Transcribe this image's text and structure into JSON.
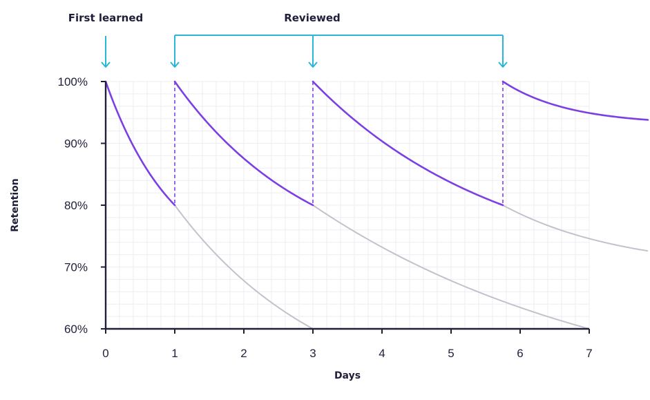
{
  "chart_data": {
    "type": "line",
    "xlabel": "Days",
    "ylabel": "Retention",
    "xlim": [
      0,
      7
    ],
    "ylim": [
      60,
      100
    ],
    "x_ticks": [
      0,
      1,
      2,
      3,
      4,
      5,
      6,
      7
    ],
    "y_ticks": [
      60,
      70,
      80,
      90,
      100
    ],
    "y_tick_labels": [
      "60%",
      "70%",
      "80%",
      "90%",
      "100%"
    ],
    "grid": true,
    "annotations": {
      "first_learned": {
        "label": "First learned",
        "x": 0
      },
      "reviewed": {
        "label": "Reviewed",
        "x": [
          1,
          3,
          5.75
        ]
      }
    },
    "series": [
      {
        "role": "retention-with-review",
        "color": "#7b3fe4",
        "segments": [
          {
            "x": [
              0,
              1
            ],
            "y": [
              100,
              80
            ]
          },
          {
            "x": [
              1,
              3
            ],
            "y": [
              100,
              80
            ]
          },
          {
            "x": [
              3,
              5.75
            ],
            "y": [
              100,
              80
            ]
          },
          {
            "x": [
              5.75,
              7.85
            ],
            "y": [
              100,
              93.8
            ]
          }
        ]
      },
      {
        "role": "forgetting-without-review",
        "color": "#c4c0cc",
        "segments": [
          {
            "x": [
              1,
              3
            ],
            "y": [
              80,
              60
            ]
          },
          {
            "x": [
              3,
              7
            ],
            "y": [
              80,
              60
            ]
          },
          {
            "x": [
              5.75,
              7.85
            ],
            "y": [
              80,
              72.6
            ]
          }
        ]
      }
    ],
    "colors": {
      "accent": "#29b6d8",
      "primary": "#7b3fe4",
      "faded": "#c4c0cc",
      "axis": "#1f1f3a",
      "grid": "#eeedf3"
    }
  }
}
